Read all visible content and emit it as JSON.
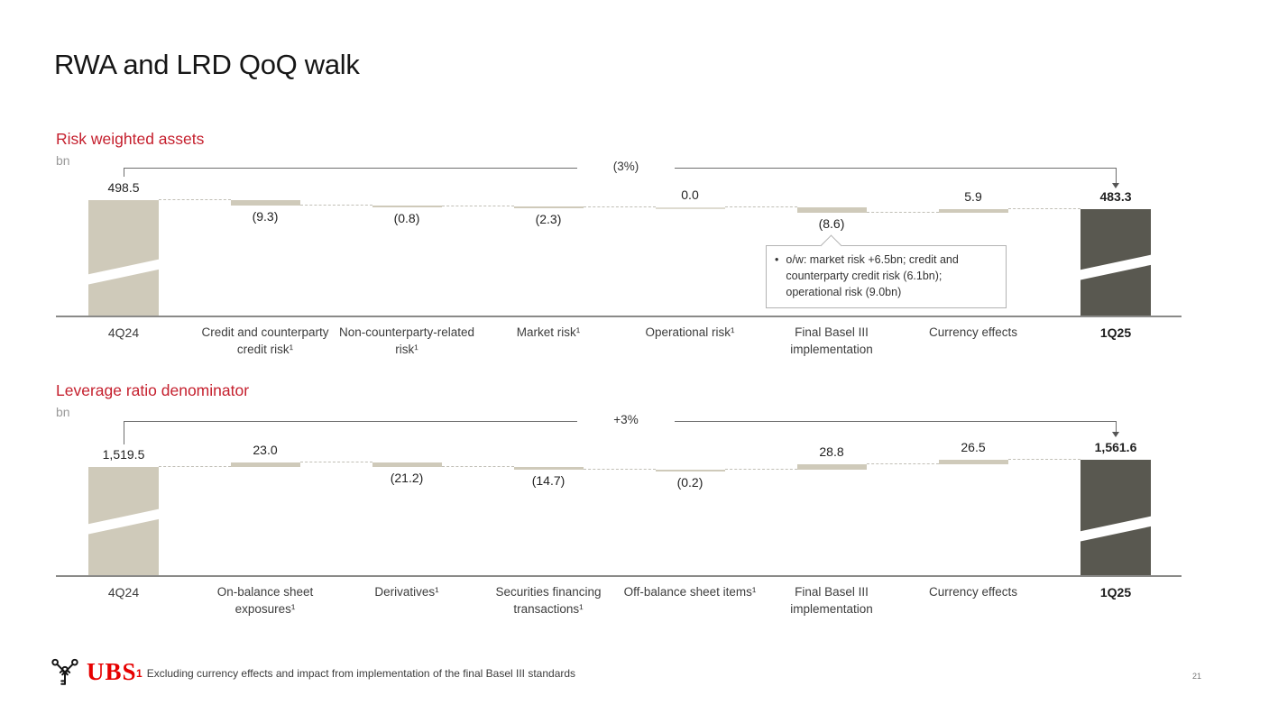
{
  "slide": {
    "title": "RWA and LRD QoQ walk",
    "page_number": "21",
    "logo_text": "UBS",
    "footnote": {
      "marker": "1",
      "text": "Excluding currency effects and impact from implementation of the final Basel III standards"
    }
  },
  "colors": {
    "accent_red": "#c5202e",
    "logo_red": "#e60000",
    "bar_beige": "#cfcaba",
    "bar_zero_beige": "#dedbd0",
    "bar_dark": "#595850",
    "axis_gray": "#8a8a88"
  },
  "chart_data": [
    {
      "type": "waterfall",
      "title": "Risk weighted assets",
      "unit": "bn",
      "total_change_label": "(3%)",
      "categories": [
        "4Q24",
        "Credit and counterparty credit risk¹",
        "Non-counterparty-related risk¹",
        "Market risk¹",
        "Operational risk¹",
        "Final Basel III implementation",
        "Currency effects",
        "1Q25"
      ],
      "values": [
        498.5,
        -9.3,
        -0.8,
        -2.3,
        0.0,
        -8.6,
        5.9,
        483.3
      ],
      "labels": [
        "498.5",
        "(9.3)",
        "(0.8)",
        "(2.3)",
        "0.0",
        "(8.6)",
        "5.9",
        "483.3"
      ],
      "roles": [
        "start",
        "delta",
        "delta",
        "delta",
        "delta",
        "delta",
        "delta",
        "end"
      ],
      "axis_break": true,
      "annotation": {
        "bullet": "•",
        "text": "o/w: market risk +6.5bn; credit and counterparty credit risk (6.1bn); operational risk (9.0bn)",
        "attached_to": "Final Basel III implementation"
      }
    },
    {
      "type": "waterfall",
      "title": "Leverage ratio denominator",
      "unit": "bn",
      "total_change_label": "+3%",
      "categories": [
        "4Q24",
        "On-balance sheet exposures¹",
        "Derivatives¹",
        "Securities financing transactions¹",
        "Off-balance sheet items¹",
        "Final Basel III implementation",
        "Currency effects",
        "1Q25"
      ],
      "values": [
        1519.5,
        23.0,
        -21.2,
        -14.7,
        -0.2,
        28.8,
        26.5,
        1561.6
      ],
      "labels": [
        "1,519.5",
        "23.0",
        "(21.2)",
        "(14.7)",
        "(0.2)",
        "28.8",
        "26.5",
        "1,561.6"
      ],
      "roles": [
        "start",
        "delta",
        "delta",
        "delta",
        "delta",
        "delta",
        "delta",
        "end"
      ],
      "axis_break": true,
      "annotation": null
    }
  ]
}
